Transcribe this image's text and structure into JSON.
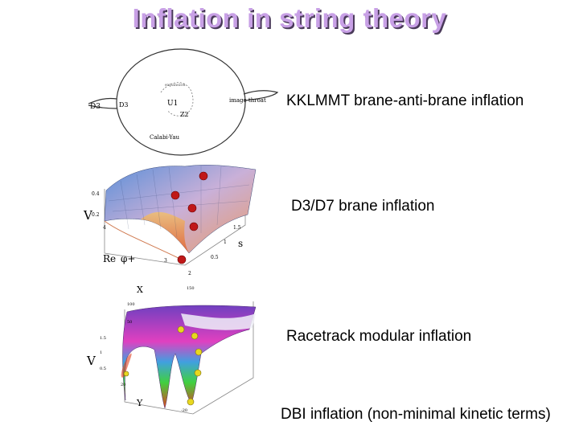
{
  "title": "Inflation in string theory",
  "items": [
    {
      "label": "KKLMMT brane-anti-brane inflation"
    },
    {
      "label": "D3/D7 brane inflation"
    },
    {
      "label": "Racetrack modular inflation"
    },
    {
      "label": "DBI inflation (non-minimal kinetic terms)"
    }
  ],
  "fig1": {
    "d3bar": "D3",
    "d3": "D3",
    "throat": "image throat",
    "cy": "Calabi-Yau",
    "u1": "U1",
    "z2": "Z2",
    "arc": "expansion"
  },
  "fig2": {
    "v_label": "V",
    "v_ticks": [
      "0.4",
      "0.2"
    ],
    "s_label": "s",
    "re_label": "Re",
    "phi_label": "φ+",
    "s_ticks": [
      "1.5",
      "1",
      "0.5"
    ],
    "re_ticks": [
      "4",
      "3",
      "2"
    ]
  },
  "fig3": {
    "x_label": "X",
    "v_label": "V",
    "y_label": "Y",
    "x_ticks": [
      "150",
      "100",
      "50"
    ],
    "v_ticks": [
      "1.5",
      "1",
      "0.5"
    ],
    "y_ticks": [
      "20",
      "-20"
    ]
  },
  "colors": {
    "title": "#c8a0e6",
    "title_shadow": "#4a3a5a",
    "red_dot": "#c01818",
    "yellow_dot": "#e8d820"
  }
}
